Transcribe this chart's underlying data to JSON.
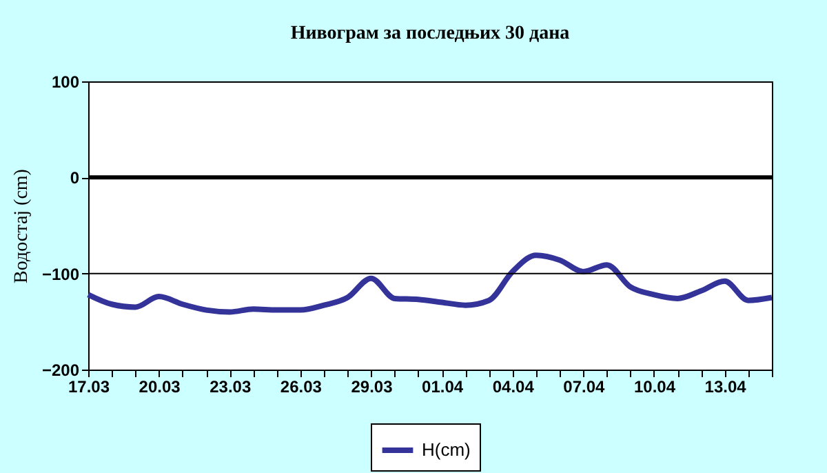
{
  "chart_data": {
    "type": "line",
    "title": "Нивограм за последњих 30 дана",
    "ylabel": "Водостај (cm)",
    "categories": [
      "17.03",
      null,
      null,
      "20.03",
      null,
      null,
      "23.03",
      null,
      null,
      "26.03",
      null,
      null,
      "29.03",
      null,
      null,
      "01.04",
      null,
      null,
      "04.04",
      null,
      null,
      "07.04",
      null,
      null,
      "10.04",
      null,
      null,
      "13.04",
      null,
      null
    ],
    "series": [
      {
        "name": "H(cm)",
        "color": "#333399",
        "values": [
          -122,
          -132,
          -135,
          -124,
          -132,
          -138,
          -140,
          -137,
          -138,
          -138,
          -133,
          -125,
          -105,
          -126,
          -127,
          -130,
          -133,
          -128,
          -98,
          -81,
          -86,
          -98,
          -91,
          -114,
          -122,
          -126,
          -118,
          -108,
          -128,
          -125
        ]
      }
    ],
    "ylim": [
      -200,
      100
    ],
    "yticks": [
      100,
      0,
      -100,
      -200
    ],
    "legend": "bottom",
    "ref_lines": [
      {
        "axis": "y",
        "value": 0,
        "color": "#000000"
      },
      {
        "axis": "y",
        "value": -100,
        "color": "#000000"
      }
    ]
  }
}
